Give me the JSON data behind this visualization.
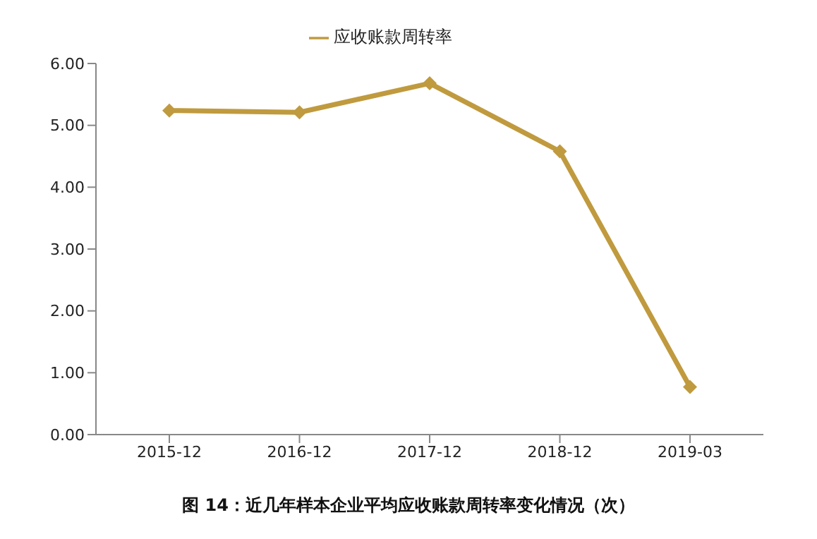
{
  "chart_data": {
    "type": "line",
    "title": "图 14：近几年样本企业平均应收账款周转率变化情况（次）",
    "categories": [
      "2015-12",
      "2016-12",
      "2017-12",
      "2018-12",
      "2019-03"
    ],
    "series": [
      {
        "name": "应收账款周转率",
        "color": "#c09a3e",
        "values": [
          5.24,
          5.21,
          5.68,
          4.58,
          0.77
        ]
      }
    ],
    "ylim": [
      0,
      6
    ],
    "yticks": [
      {
        "value": 0,
        "label": "0.00"
      },
      {
        "value": 1,
        "label": "1.00"
      },
      {
        "value": 2,
        "label": "2.00"
      },
      {
        "value": 3,
        "label": "3.00"
      },
      {
        "value": 4,
        "label": "4.00"
      },
      {
        "value": 5,
        "label": "5.00"
      },
      {
        "value": 6,
        "label": "6.00"
      }
    ],
    "legend": "top",
    "marker": "diamond",
    "grid": false
  }
}
